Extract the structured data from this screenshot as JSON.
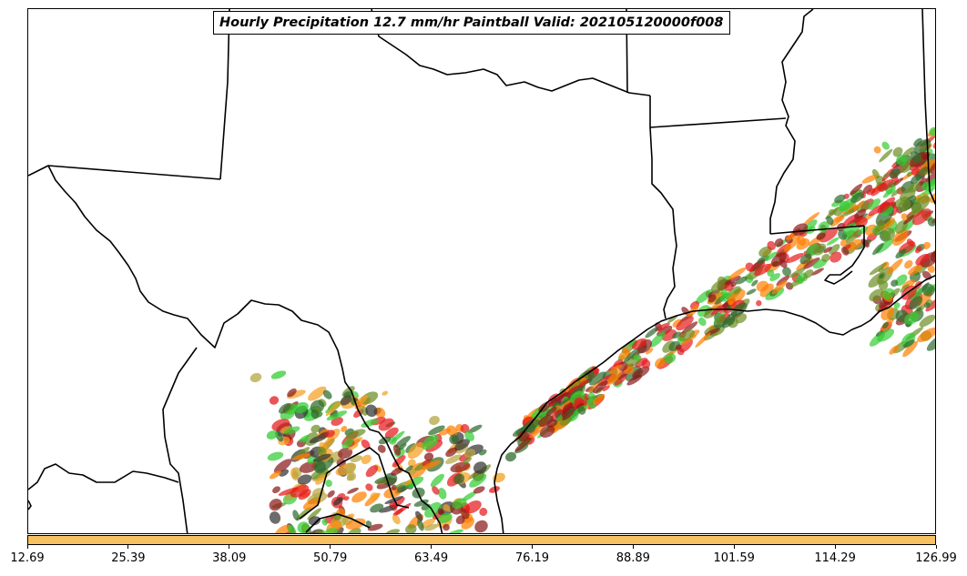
{
  "title": "Hourly Precipitation 12.7 mm/hr Paintball Valid: 202105120000f008",
  "colorbar": {
    "color": "#f7c060",
    "ticks": [
      "12.69",
      "25.39",
      "38.09",
      "50.79",
      "63.49",
      "76.19",
      "88.89",
      "101.59",
      "114.29",
      "126.99"
    ]
  },
  "paintball_colors": [
    "#e41a1c",
    "#ff7f00",
    "#33cc33",
    "#8b1a1a",
    "#6b8e23",
    "#2e6b2e",
    "#b5a642",
    "#f4a020",
    "#333333"
  ]
}
